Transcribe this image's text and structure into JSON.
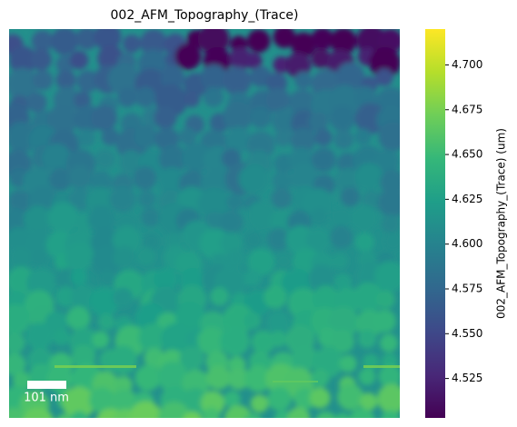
{
  "chart_data": {
    "type": "heatmap",
    "title": "002_AFM_Topography_(Trace)",
    "colorbar_label": "002_AFM_Topography_(Trace) (um)",
    "colormap": "viridis",
    "clim": [
      4.503,
      4.72
    ],
    "cticks": [
      4.525,
      {
        "value": 4.55,
        "label": "4.550"
      },
      4.575,
      {
        "value": 4.6,
        "label": "4.600"
      },
      4.625,
      {
        "value": 4.65,
        "label": "4.650"
      },
      4.675,
      {
        "value": 4.7,
        "label": "4.700"
      }
    ],
    "scale_bar_label": "101 nm"
  }
}
